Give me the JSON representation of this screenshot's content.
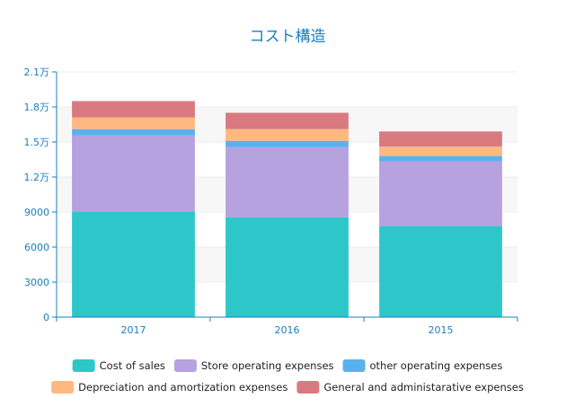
{
  "chart_data": {
    "type": "bar",
    "stacked": true,
    "title": "コスト構造",
    "categories": [
      "2017",
      "2016",
      "2015"
    ],
    "ylim": [
      0,
      21000
    ],
    "yticks": [
      {
        "value": 0,
        "label": "0"
      },
      {
        "value": 3000,
        "label": "3000"
      },
      {
        "value": 6000,
        "label": "6000"
      },
      {
        "value": 9000,
        "label": "9000"
      },
      {
        "value": 12000,
        "label": "1.2万"
      },
      {
        "value": 15000,
        "label": "1.5万"
      },
      {
        "value": 18000,
        "label": "1.8万"
      },
      {
        "value": 21000,
        "label": "2.1万"
      }
    ],
    "grid": true,
    "legend_position": "bottom",
    "series": [
      {
        "name": "Cost of sales",
        "color": "#2ec7c9",
        "values": [
          9050,
          8550,
          7800
        ]
      },
      {
        "name": "Store operating expenses",
        "color": "#b6a2de",
        "values": [
          6500,
          6000,
          5550
        ]
      },
      {
        "name": "other operating expenses",
        "color": "#5ab1ef",
        "values": [
          550,
          550,
          450
        ]
      },
      {
        "name": "Depreciation and amortization expenses",
        "color": "#ffb980",
        "values": [
          1000,
          1000,
          800
        ]
      },
      {
        "name": "General and administarative expenses",
        "color": "#d87a80",
        "values": [
          1400,
          1400,
          1300
        ]
      }
    ]
  }
}
